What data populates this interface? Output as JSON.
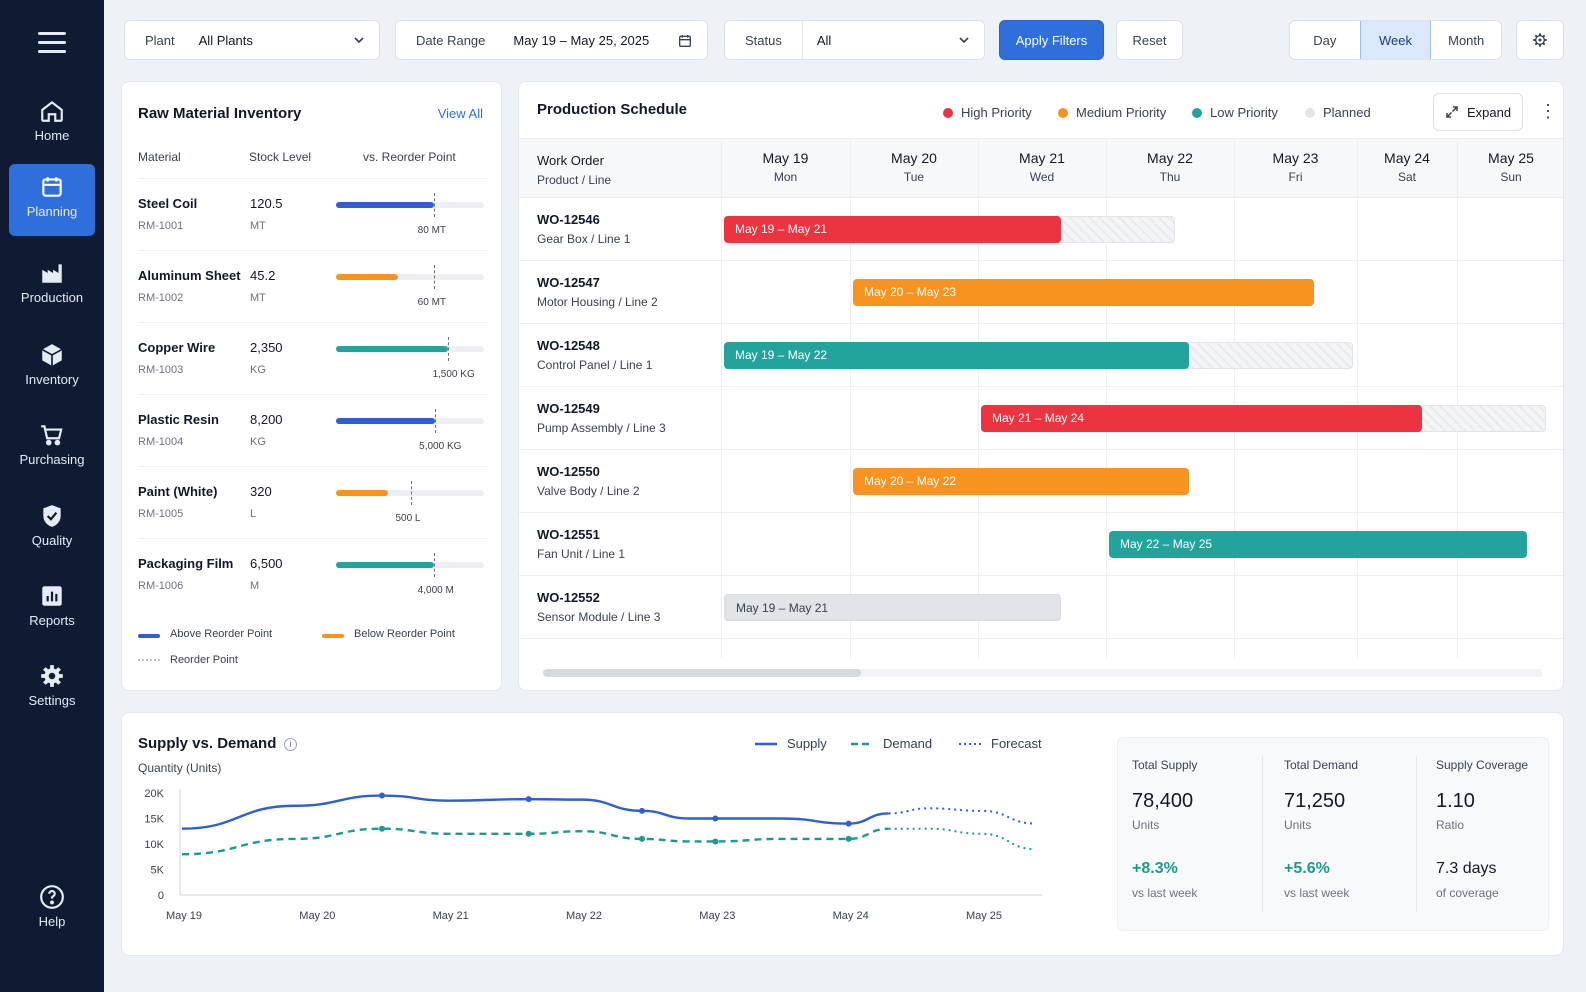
{
  "sidebar": {
    "items": [
      {
        "label": "Home",
        "icon": "home-icon"
      },
      {
        "label": "Planning",
        "icon": "calendar-icon",
        "active": true
      },
      {
        "label": "Production",
        "icon": "factory-icon"
      },
      {
        "label": "Inventory",
        "icon": "box-icon"
      },
      {
        "label": "Purchasing",
        "icon": "cart-icon"
      },
      {
        "label": "Quality",
        "icon": "shield-check-icon"
      },
      {
        "label": "Reports",
        "icon": "bar-chart-icon"
      },
      {
        "label": "Settings",
        "icon": "gear-icon"
      }
    ],
    "help_label": "Help"
  },
  "filters": {
    "plant_label": "Plant",
    "plant_value": "All Plants",
    "date_label": "Date Range",
    "date_value": "May 19 – May 25, 2025",
    "status_label": "Status",
    "status_value": "All",
    "apply_label": "Apply Filters",
    "reset_label": "Reset",
    "views": [
      "Day",
      "Week",
      "Month"
    ],
    "active_view": "Week"
  },
  "inventory": {
    "title": "Raw Material Inventory",
    "view_all": "View All",
    "headers": [
      "Material",
      "Stock Level",
      "vs. Reorder Point"
    ],
    "items": [
      {
        "name": "Steel Coil",
        "code": "RM-1001",
        "stock": "120.5",
        "unit": "MT",
        "reorder_label": "80 MT",
        "level": 0.66,
        "reorder": 0.66,
        "status": "above"
      },
      {
        "name": "Aluminum Sheet",
        "code": "RM-1002",
        "stock": "45.2",
        "unit": "MT",
        "reorder_label": "60 MT",
        "level": 0.42,
        "reorder": 0.66,
        "status": "below"
      },
      {
        "name": "Copper Wire",
        "code": "RM-1003",
        "stock": "2,350",
        "unit": "KG",
        "reorder_label": "1,500 KG",
        "level": 0.76,
        "reorder": 0.76,
        "status": "healthy"
      },
      {
        "name": "Plastic Resin",
        "code": "RM-1004",
        "stock": "8,200",
        "unit": "KG",
        "reorder_label": "5,000 KG",
        "level": 0.67,
        "reorder": 0.67,
        "status": "above"
      },
      {
        "name": "Paint (White)",
        "code": "RM-1005",
        "stock": "320",
        "unit": "L",
        "reorder_label": "500 L",
        "level": 0.35,
        "reorder": 0.51,
        "status": "below"
      },
      {
        "name": "Packaging Film",
        "code": "RM-1006",
        "stock": "6,500",
        "unit": "M",
        "reorder_label": "4,000 M",
        "level": 0.66,
        "reorder": 0.66,
        "status": "healthy"
      }
    ],
    "legend": {
      "above": "Above Reorder Point",
      "below": "Below Reorder Point",
      "reorder": "Reorder Point"
    }
  },
  "schedule": {
    "title": "Production Schedule",
    "legend": [
      {
        "label": "High Priority",
        "color": "#ec3340"
      },
      {
        "label": "Medium Priority",
        "color": "#f7931e"
      },
      {
        "label": "Low Priority",
        "color": "#22a39c"
      },
      {
        "label": "Planned",
        "color": "#e2e4e8"
      }
    ],
    "expand_label": "Expand",
    "header_line1": "Work Order",
    "header_line2": "Product / Line",
    "days": [
      {
        "date": "May 19",
        "dow": "Mon"
      },
      {
        "date": "May 20",
        "dow": "Tue"
      },
      {
        "date": "May 21",
        "dow": "Wed"
      },
      {
        "date": "May 22",
        "dow": "Thu"
      },
      {
        "date": "May 23",
        "dow": "Fri"
      },
      {
        "date": "May 24",
        "dow": "Sat"
      },
      {
        "date": "May 25",
        "dow": "Sun"
      }
    ],
    "orders": [
      {
        "id": "WO-12546",
        "product": "Gear Box / Line 1",
        "bar_label": "May 19 – May 21",
        "priority": "high",
        "start": "2025-05-19",
        "end": "2025-05-21"
      },
      {
        "id": "WO-12547",
        "product": "Motor Housing / Line 2",
        "bar_label": "May 20 – May 23",
        "priority": "medium",
        "start": "2025-05-20",
        "end": "2025-05-23"
      },
      {
        "id": "WO-12548",
        "product": "Control Panel / Line 1",
        "bar_label": "May 19 – May 22",
        "priority": "low",
        "start": "2025-05-19",
        "end": "2025-05-22"
      },
      {
        "id": "WO-12549",
        "product": "Pump Assembly / Line 3",
        "bar_label": "May 21 – May 24",
        "priority": "high",
        "start": "2025-05-21",
        "end": "2025-05-24"
      },
      {
        "id": "WO-12550",
        "product": "Valve Body / Line 2",
        "bar_label": "May 20 – May 22",
        "priority": "medium",
        "start": "2025-05-20",
        "end": "2025-05-22"
      },
      {
        "id": "WO-12551",
        "product": "Fan Unit / Line 1",
        "bar_label": "May 22 – May 25",
        "priority": "low",
        "start": "2025-05-22",
        "end": "2025-05-25"
      },
      {
        "id": "WO-12552",
        "product": "Sensor Module / Line 3",
        "bar_label": "May 19 – May 21",
        "priority": "planned",
        "start": "2025-05-19",
        "end": "2025-05-21"
      }
    ]
  },
  "supply_demand": {
    "title": "Supply vs. Demand",
    "y_axis_label": "Quantity (Units)",
    "kpis": [
      {
        "label": "Total Supply",
        "value": "78,400",
        "unit": "Units",
        "change": "+8.3%",
        "sub": "vs last week"
      },
      {
        "label": "Total Demand",
        "value": "71,250",
        "unit": "Units",
        "change": "+5.6%",
        "sub": "vs last week"
      },
      {
        "label": "Supply Coverage",
        "value": "1.10",
        "unit": "Ratio",
        "change": "7.3 days",
        "sub": "of coverage"
      }
    ]
  },
  "chart_data": {
    "type": "line",
    "xlabel": "",
    "ylabel": "Quantity (Units)",
    "categories": [
      "May 19",
      "May 20",
      "May 21",
      "May 22",
      "May 23",
      "May 24",
      "May 25"
    ],
    "ylim": [
      0,
      20000
    ],
    "yticks": [
      "0",
      "5K",
      "10K",
      "15K",
      "20K"
    ],
    "legend_position": "top-right",
    "grid": false,
    "series": [
      {
        "name": "Supply",
        "style": "solid",
        "color": "#2f5fd0",
        "x": [
          0,
          0.85,
          1.5,
          2.0,
          2.6,
          3.0,
          3.45,
          3.8,
          4.0,
          4.5,
          5.0,
          5.3
        ],
        "y": [
          13000,
          17500,
          19500,
          18500,
          18800,
          18700,
          16500,
          15000,
          15000,
          15000,
          14000,
          16000
        ]
      },
      {
        "name": "Demand",
        "style": "dashed",
        "color": "#1c9a8e",
        "x": [
          0,
          0.85,
          1.5,
          2.0,
          2.6,
          3.0,
          3.45,
          3.8,
          4.0,
          4.5,
          5.0,
          5.3
        ],
        "y": [
          8000,
          11000,
          13000,
          12000,
          12000,
          12500,
          11000,
          10500,
          10500,
          11000,
          11000,
          13000
        ]
      },
      {
        "name": "Forecast",
        "style": "dotted",
        "color": "#2f5fd0",
        "x": [
          5.3,
          5.6,
          6.0,
          6.4
        ],
        "y": [
          16000,
          17000,
          16500,
          14000
        ]
      },
      {
        "name": "Forecast",
        "style": "dotted",
        "color": "#1c9a8e",
        "x": [
          5.3,
          5.6,
          6.0,
          6.4
        ],
        "y": [
          13000,
          13000,
          12000,
          9000
        ]
      }
    ]
  },
  "colors": {
    "high": "#ec3340",
    "medium": "#f7931e",
    "low": "#22a39c",
    "planned": "#e2e4e8",
    "accent": "#2f6fdb",
    "sidebar": "#0f1b33"
  }
}
